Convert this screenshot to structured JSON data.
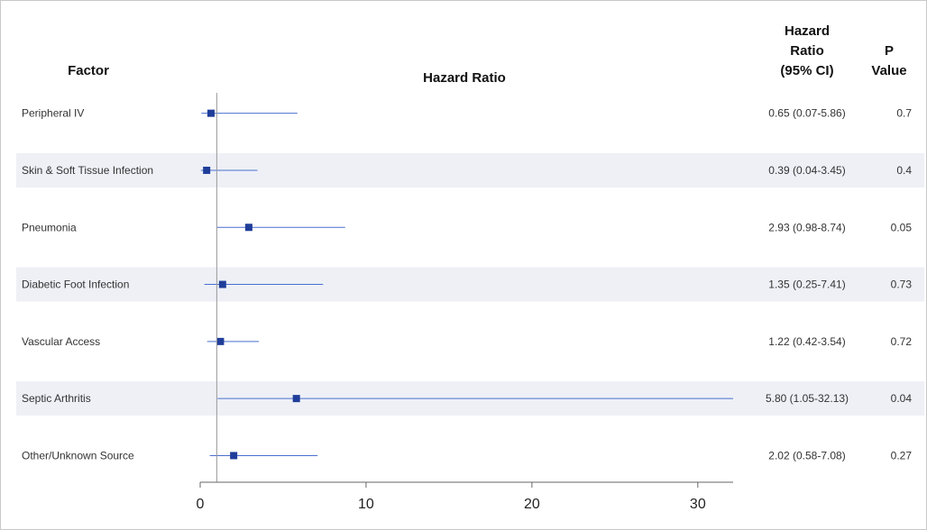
{
  "chart_data": {
    "type": "forest",
    "title": "Hazard Ratio",
    "factor_header": "Factor",
    "hr_header": [
      "Hazard",
      "Ratio",
      "(95% CI)"
    ],
    "p_header": [
      "P",
      "Value"
    ],
    "reference_line": 1,
    "xlim": [
      0,
      32.13
    ],
    "xticks": [
      0,
      10,
      20,
      30
    ],
    "rows": [
      {
        "factor": "Peripheral IV",
        "hr": 0.65,
        "lo": 0.07,
        "hi": 5.86,
        "hr_text": "0.65 (0.07-5.86)",
        "p": "0.7"
      },
      {
        "factor": "Skin & Soft Tissue Infection",
        "hr": 0.39,
        "lo": 0.04,
        "hi": 3.45,
        "hr_text": "0.39 (0.04-3.45)",
        "p": "0.4"
      },
      {
        "factor": "Pneumonia",
        "hr": 2.93,
        "lo": 0.98,
        "hi": 8.74,
        "hr_text": "2.93 (0.98-8.74)",
        "p": "0.05"
      },
      {
        "factor": "Diabetic Foot Infection",
        "hr": 1.35,
        "lo": 0.25,
        "hi": 7.41,
        "hr_text": "1.35 (0.25-7.41)",
        "p": "0.73"
      },
      {
        "factor": "Vascular Access",
        "hr": 1.22,
        "lo": 0.42,
        "hi": 3.54,
        "hr_text": "1.22 (0.42-3.54)",
        "p": "0.72"
      },
      {
        "factor": "Septic Arthritis",
        "hr": 5.8,
        "lo": 1.05,
        "hi": 32.13,
        "hr_text": "5.80 (1.05-32.13)",
        "p": "0.04"
      },
      {
        "factor": "Other/Unknown Source",
        "hr": 2.02,
        "lo": 0.58,
        "hi": 7.08,
        "hr_text": "2.02 (0.58-7.08)",
        "p": "0.27"
      }
    ],
    "colors": {
      "marker": "#1f3d99",
      "ci_line": "#4a6fd0",
      "band": "#eef0f6",
      "ref_line": "#9a9a9a"
    }
  }
}
